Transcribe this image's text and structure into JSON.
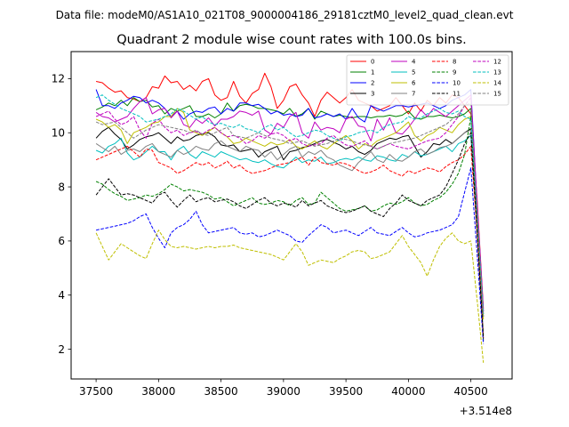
{
  "suptitle": "Data file: modeM0/AS1A10_021T08_9000004186_29181cztM0_level2_quad_clean.evt",
  "chart_data": {
    "type": "line",
    "title": "Quadrant 2 module wise count rates with 100.0s bins.",
    "xlabel": "",
    "ylabel": "",
    "x_offset_label": "+3.514e8",
    "x": [
      37500,
      37550,
      37600,
      37650,
      37700,
      37750,
      37800,
      37850,
      37900,
      37950,
      38000,
      38050,
      38100,
      38150,
      38200,
      38250,
      38300,
      38350,
      38400,
      38450,
      38500,
      38550,
      38600,
      38650,
      38700,
      38750,
      38800,
      38850,
      38900,
      38950,
      39000,
      39050,
      39100,
      39150,
      39200,
      39250,
      39300,
      39350,
      39400,
      39450,
      39500,
      39550,
      39600,
      39650,
      39700,
      39750,
      39800,
      39850,
      39900,
      39950,
      40000,
      40050,
      40100,
      40150,
      40200,
      40250,
      40300,
      40350,
      40400,
      40450,
      40500,
      40550,
      40600
    ],
    "xlim": [
      37300,
      40830
    ],
    "ylim": [
      0.9,
      13.0
    ],
    "xticks": [
      37500,
      38000,
      38500,
      39000,
      39500,
      40000,
      40500
    ],
    "xtick_labels": [
      "37500",
      "38000",
      "38500",
      "39000",
      "39500",
      "40000",
      "40500"
    ],
    "yticks": [
      2,
      4,
      6,
      8,
      10,
      12
    ],
    "ytick_labels": [
      "2",
      "4",
      "6",
      "8",
      "10",
      "12"
    ],
    "grid": false,
    "legend_placement": "top-right",
    "series": [
      {
        "name": "0",
        "color": "#ff0000",
        "style": "solid",
        "values": [
          11.9,
          11.85,
          11.65,
          11.5,
          11.55,
          11.3,
          11.25,
          11.15,
          11.3,
          11.7,
          11.65,
          12.1,
          11.85,
          11.9,
          11.6,
          11.75,
          11.55,
          11.9,
          12.0,
          11.4,
          11.2,
          11.3,
          11.9,
          11.35,
          11.1,
          11.45,
          11.6,
          12.2,
          11.7,
          10.9,
          11.2,
          11.7,
          11.8,
          11.4,
          11.1,
          10.6,
          11.2,
          11.5,
          11.3,
          11.1,
          11.3,
          11.6,
          11.2,
          11.1,
          11.0,
          10.8,
          10.9,
          11.0,
          11.3,
          11.0,
          10.7,
          11.1,
          10.8,
          11.2,
          11.0,
          11.3,
          11.1,
          11.4,
          11.3,
          11.0,
          10.7,
          7.5,
          3.5
        ]
      },
      {
        "name": "1",
        "color": "#008000",
        "style": "solid",
        "values": [
          10.85,
          10.95,
          11.1,
          11.0,
          11.2,
          11.0,
          11.3,
          11.15,
          11.2,
          10.95,
          11.0,
          10.7,
          10.9,
          10.8,
          10.9,
          11.0,
          10.6,
          10.6,
          10.7,
          10.55,
          10.7,
          11.1,
          10.8,
          11.0,
          11.05,
          11.0,
          10.9,
          10.9,
          10.85,
          10.8,
          10.7,
          10.9,
          10.6,
          10.7,
          10.9,
          10.5,
          10.8,
          10.7,
          10.6,
          10.65,
          10.6,
          10.55,
          10.6,
          10.6,
          10.55,
          10.6,
          10.6,
          10.65,
          10.6,
          10.65,
          10.8,
          10.55,
          10.5,
          10.6,
          10.6,
          10.65,
          10.6,
          10.55,
          10.6,
          10.7,
          10.9,
          7.0,
          3.3
        ]
      },
      {
        "name": "2",
        "color": "#0000ff",
        "style": "solid",
        "values": [
          11.6,
          11.0,
          11.0,
          10.9,
          11.1,
          11.2,
          11.35,
          11.3,
          11.1,
          11.2,
          11.1,
          10.9,
          10.6,
          10.8,
          10.5,
          10.7,
          10.8,
          10.75,
          10.9,
          10.95,
          10.7,
          10.9,
          10.8,
          11.1,
          11.1,
          11.0,
          11.05,
          10.9,
          10.7,
          10.8,
          10.65,
          10.7,
          10.6,
          10.65,
          10.9,
          10.55,
          10.6,
          10.7,
          10.6,
          10.7,
          10.5,
          10.9,
          10.55,
          10.4,
          11.0,
          10.9,
          10.8,
          10.9,
          11.0,
          11.0,
          10.95,
          11.0,
          11.05,
          11.1,
          11.0,
          10.9,
          11.0,
          11.2,
          11.3,
          11.4,
          11.6,
          7.3,
          3.4
        ]
      },
      {
        "name": "3",
        "color": "#000000",
        "style": "solid",
        "values": [
          9.8,
          10.05,
          10.2,
          9.95,
          9.75,
          9.4,
          9.55,
          9.75,
          9.85,
          9.9,
          10.0,
          9.8,
          9.6,
          9.85,
          9.7,
          9.75,
          9.9,
          9.95,
          10.0,
          9.85,
          9.55,
          9.5,
          9.55,
          9.3,
          9.35,
          9.4,
          9.1,
          9.3,
          9.4,
          9.5,
          9.0,
          9.3,
          9.35,
          9.45,
          9.5,
          9.6,
          9.7,
          9.75,
          9.65,
          9.55,
          9.4,
          9.5,
          9.3,
          9.2,
          9.35,
          9.6,
          9.7,
          9.8,
          9.75,
          9.85,
          9.9,
          9.5,
          9.1,
          9.3,
          9.6,
          9.55,
          9.75,
          9.6,
          9.8,
          10.0,
          10.15,
          6.8,
          3.2
        ]
      },
      {
        "name": "4",
        "color": "#bf00bf",
        "style": "solid",
        "values": [
          10.75,
          10.6,
          10.55,
          10.4,
          10.5,
          10.6,
          10.9,
          11.15,
          11.3,
          10.7,
          10.85,
          10.9,
          10.55,
          10.8,
          10.3,
          10.2,
          10.5,
          10.35,
          10.55,
          10.25,
          10.5,
          10.5,
          10.6,
          10.8,
          10.75,
          10.65,
          10.8,
          10.1,
          9.95,
          10.35,
          10.2,
          10.6,
          10.75,
          10.0,
          9.8,
          10.4,
          10.1,
          10.2,
          10.15,
          10.0,
          10.5,
          10.6,
          10.25,
          10.2,
          9.7,
          10.5,
          10.1,
          10.55,
          10.0,
          9.95,
          10.2,
          10.5,
          10.85,
          10.6,
          10.9,
          10.75,
          10.6,
          10.8,
          11.0,
          11.2,
          11.4,
          7.4,
          3.4
        ]
      },
      {
        "name": "5",
        "color": "#00bfbf",
        "style": "solid",
        "values": [
          9.35,
          9.25,
          9.5,
          9.6,
          9.8,
          9.25,
          9.0,
          9.1,
          9.3,
          9.5,
          9.3,
          9.3,
          9.0,
          9.35,
          9.5,
          9.2,
          9.05,
          9.3,
          9.2,
          9.1,
          9.3,
          9.2,
          9.1,
          9.0,
          9.05,
          8.95,
          8.9,
          9.0,
          8.85,
          8.75,
          8.7,
          8.9,
          9.1,
          8.9,
          9.0,
          8.95,
          9.1,
          8.85,
          8.9,
          9.0,
          9.05,
          9.0,
          9.1,
          9.0,
          8.95,
          9.15,
          9.1,
          9.0,
          8.95,
          9.2,
          9.1,
          9.3,
          9.15,
          9.2,
          9.3,
          9.4,
          9.5,
          9.3,
          9.6,
          9.7,
          9.9,
          6.4,
          2.5
        ]
      },
      {
        "name": "6",
        "color": "#bfbf00",
        "style": "solid",
        "values": [
          10.5,
          10.4,
          10.2,
          10.3,
          10.1,
          9.6,
          10.0,
          10.1,
          10.2,
          10.35,
          10.4,
          10.6,
          10.6,
          10.9,
          10.75,
          10.1,
          10.0,
          9.9,
          10.05,
          10.2,
          10.0,
          9.85,
          9.6,
          9.65,
          9.8,
          9.7,
          9.6,
          9.5,
          9.65,
          9.55,
          9.6,
          9.75,
          9.5,
          9.4,
          9.55,
          9.7,
          9.5,
          9.4,
          9.6,
          9.75,
          9.9,
          9.7,
          9.4,
          9.6,
          9.5,
          9.7,
          9.8,
          9.9,
          10.0,
          10.2,
          10.4,
          9.9,
          9.7,
          9.9,
          10.0,
          10.2,
          10.1,
          10.0,
          10.3,
          10.5,
          10.6,
          6.9,
          3.1
        ]
      },
      {
        "name": "7",
        "color": "#808080",
        "style": "solid",
        "values": [
          9.6,
          9.45,
          9.3,
          9.5,
          9.2,
          9.35,
          9.4,
          9.3,
          9.5,
          9.6,
          9.3,
          9.2,
          9.1,
          9.35,
          9.2,
          9.3,
          9.5,
          9.4,
          9.35,
          9.6,
          9.7,
          9.5,
          9.4,
          9.3,
          9.5,
          9.4,
          9.35,
          9.1,
          9.3,
          9.0,
          9.2,
          9.4,
          9.5,
          9.1,
          9.3,
          9.2,
          9.35,
          9.1,
          9.0,
          8.8,
          8.7,
          8.6,
          8.9,
          9.1,
          9.3,
          9.0,
          8.9,
          9.2,
          9.0,
          8.95,
          9.1,
          9.3,
          9.4,
          9.2,
          9.3,
          9.45,
          9.5,
          9.6,
          9.8,
          10.0,
          10.1,
          6.6,
          2.5
        ]
      },
      {
        "name": "8",
        "color": "#ff0000",
        "style": "dashed",
        "values": [
          9.0,
          9.1,
          9.2,
          9.3,
          9.4,
          9.5,
          9.3,
          9.1,
          9.4,
          9.35,
          8.9,
          8.8,
          8.7,
          8.5,
          8.6,
          8.75,
          8.9,
          8.8,
          8.9,
          8.7,
          8.8,
          8.95,
          8.7,
          8.8,
          8.6,
          8.5,
          8.55,
          8.6,
          8.7,
          8.8,
          8.85,
          8.9,
          9.0,
          9.1,
          8.8,
          9.1,
          8.9,
          8.85,
          8.8,
          8.9,
          8.85,
          8.75,
          8.6,
          8.5,
          8.55,
          8.65,
          8.8,
          8.6,
          8.5,
          8.4,
          8.6,
          8.5,
          8.6,
          8.7,
          8.65,
          8.55,
          8.75,
          8.9,
          9.0,
          9.2,
          9.5,
          6.3,
          2.4
        ]
      },
      {
        "name": "9",
        "color": "#008000",
        "style": "dashed",
        "values": [
          8.2,
          8.1,
          7.9,
          7.75,
          7.65,
          7.5,
          7.55,
          7.6,
          7.7,
          7.65,
          7.75,
          7.9,
          8.1,
          8.0,
          7.85,
          7.9,
          7.85,
          7.8,
          7.7,
          7.55,
          7.6,
          7.45,
          7.3,
          7.4,
          7.5,
          7.6,
          7.4,
          7.35,
          7.4,
          7.5,
          7.45,
          7.3,
          7.5,
          7.6,
          7.35,
          7.4,
          7.8,
          7.6,
          7.4,
          7.2,
          7.1,
          7.15,
          7.2,
          7.3,
          7.1,
          7.15,
          7.3,
          7.4,
          7.35,
          7.45,
          7.6,
          7.4,
          7.3,
          7.35,
          7.5,
          7.6,
          7.8,
          8.1,
          8.5,
          9.2,
          10.6,
          6.5,
          2.3
        ]
      },
      {
        "name": "10",
        "color": "#0000ff",
        "style": "dashed",
        "values": [
          6.4,
          6.45,
          6.5,
          6.55,
          6.6,
          6.65,
          6.75,
          6.9,
          7.0,
          6.5,
          6.1,
          5.75,
          6.3,
          6.5,
          6.6,
          6.8,
          7.1,
          6.6,
          6.3,
          6.35,
          6.4,
          6.45,
          6.5,
          6.3,
          6.25,
          6.3,
          6.15,
          6.2,
          6.3,
          6.4,
          6.3,
          6.2,
          6.0,
          5.95,
          6.2,
          6.4,
          6.6,
          6.5,
          6.3,
          6.35,
          6.4,
          6.3,
          6.2,
          6.35,
          6.5,
          6.3,
          6.25,
          6.2,
          6.35,
          6.5,
          6.3,
          6.15,
          6.2,
          6.3,
          6.35,
          6.4,
          6.5,
          6.6,
          6.9,
          7.8,
          8.7,
          5.5,
          2.2
        ]
      },
      {
        "name": "11",
        "color": "#000000",
        "style": "dashed",
        "values": [
          7.7,
          8.0,
          8.3,
          8.0,
          7.7,
          7.75,
          7.7,
          7.6,
          7.5,
          7.4,
          7.7,
          7.8,
          7.5,
          7.25,
          7.5,
          7.7,
          7.45,
          7.55,
          7.6,
          7.45,
          7.5,
          7.55,
          7.45,
          7.3,
          7.2,
          7.35,
          7.5,
          7.6,
          7.4,
          7.3,
          7.4,
          7.35,
          7.25,
          7.5,
          7.3,
          7.4,
          7.5,
          7.3,
          7.2,
          7.1,
          7.05,
          7.1,
          7.2,
          7.3,
          7.1,
          7.0,
          6.9,
          7.2,
          7.4,
          7.7,
          7.5,
          7.4,
          7.3,
          7.5,
          7.6,
          7.7,
          8.0,
          8.5,
          9.0,
          9.6,
          10.0,
          6.3,
          2.4
        ]
      },
      {
        "name": "12",
        "color": "#bf00bf",
        "style": "dashed",
        "values": [
          10.6,
          10.7,
          10.8,
          10.5,
          10.3,
          10.4,
          10.6,
          10.1,
          9.8,
          10.35,
          10.5,
          10.2,
          10.0,
          10.1,
          9.9,
          10.0,
          10.05,
          9.95,
          10.1,
          10.2,
          10.0,
          9.85,
          9.9,
          9.8,
          9.6,
          9.7,
          9.9,
          9.8,
          9.95,
          10.0,
          9.9,
          9.7,
          9.8,
          9.6,
          9.5,
          9.55,
          9.6,
          9.8,
          9.9,
          9.7,
          9.55,
          9.5,
          9.6,
          9.7,
          9.5,
          9.4,
          9.5,
          9.6,
          9.5,
          9.45,
          9.4,
          9.5,
          9.6,
          9.7,
          9.75,
          9.8,
          10.0,
          10.3,
          10.6,
          11.0,
          11.3,
          7.3,
          3.4
        ]
      },
      {
        "name": "13",
        "color": "#00bfbf",
        "style": "dashed",
        "values": [
          11.3,
          11.4,
          11.2,
          11.05,
          10.9,
          10.8,
          10.7,
          10.6,
          10.4,
          10.45,
          10.5,
          10.6,
          10.7,
          10.9,
          10.8,
          10.65,
          10.5,
          10.6,
          10.4,
          10.3,
          10.35,
          10.25,
          10.2,
          10.3,
          10.15,
          10.1,
          10.0,
          10.2,
          10.3,
          10.1,
          10.2,
          10.0,
          9.85,
          9.9,
          10.0,
          10.1,
          10.05,
          9.9,
          9.8,
          9.7,
          9.85,
          9.9,
          10.0,
          10.05,
          10.1,
          10.0,
          10.2,
          10.3,
          10.35,
          10.4,
          10.6,
          10.5,
          10.55,
          10.7,
          10.8,
          10.9,
          10.75,
          10.7,
          10.8,
          10.6,
          10.5,
          7.0,
          3.3
        ]
      },
      {
        "name": "14",
        "color": "#bfbf00",
        "style": "dashed",
        "values": [
          6.3,
          5.8,
          5.3,
          5.6,
          5.9,
          5.75,
          5.6,
          5.45,
          5.35,
          5.9,
          6.4,
          6.05,
          5.8,
          5.75,
          5.8,
          5.75,
          5.7,
          5.75,
          5.8,
          5.75,
          5.8,
          5.8,
          5.85,
          5.75,
          5.7,
          5.65,
          5.6,
          5.55,
          5.5,
          5.4,
          5.3,
          5.6,
          5.9,
          5.6,
          5.1,
          5.2,
          5.3,
          5.25,
          5.2,
          5.35,
          5.45,
          5.6,
          5.65,
          5.6,
          5.35,
          5.4,
          5.5,
          5.6,
          5.9,
          6.2,
          5.8,
          5.5,
          5.2,
          4.7,
          5.3,
          5.8,
          6.1,
          6.3,
          6.0,
          5.9,
          6.0,
          3.8,
          1.5
        ]
      },
      {
        "name": "15",
        "color": "#808080",
        "style": "dashed",
        "values": [
          10.4,
          10.3,
          10.35,
          10.4,
          10.2,
          10.0,
          9.8,
          9.95,
          10.1,
          10.2,
          10.3,
          10.25,
          10.2,
          10.15,
          10.1,
          10.0,
          10.1,
          9.95,
          9.9,
          10.0,
          10.1,
          10.2,
          9.9,
          9.85,
          9.8,
          9.9,
          10.0,
          9.9,
          9.8,
          9.75,
          9.7,
          9.6,
          9.65,
          9.7,
          9.6,
          9.5,
          9.55,
          9.6,
          9.7,
          9.8,
          9.75,
          9.7,
          9.6,
          9.55,
          9.5,
          9.4,
          9.5,
          9.6,
          9.65,
          9.7,
          9.75,
          9.8,
          9.9,
          10.0,
          10.1,
          10.2,
          10.3,
          10.5,
          10.7,
          11.0,
          11.1,
          7.0,
          3.2
        ]
      }
    ]
  }
}
